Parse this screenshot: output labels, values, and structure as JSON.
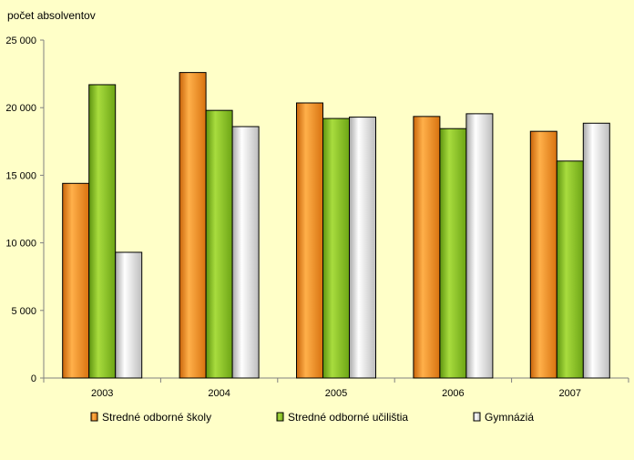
{
  "chart_data": {
    "type": "bar",
    "ylabel": "počet absolventov",
    "categories": [
      "2003",
      "2004",
      "2005",
      "2006",
      "2007"
    ],
    "ylim": [
      0,
      25000
    ],
    "yticks": [
      0,
      5000,
      10000,
      15000,
      20000,
      25000
    ],
    "ytick_labels": [
      "0",
      "5 000",
      "10 000",
      "15 000",
      "20 000",
      "25 000"
    ],
    "grid": false,
    "legend_position": "bottom",
    "series": [
      {
        "name": "Stredné odborné školy",
        "color": "#F28C1E",
        "values": [
          14400,
          22600,
          20350,
          19350,
          18250
        ]
      },
      {
        "name": "Stredné odborné učilištia",
        "color": "#86C11F",
        "values": [
          21700,
          19800,
          19200,
          18450,
          16050
        ]
      },
      {
        "name": "Gymnáziá",
        "color": "#F2F2F2",
        "values": [
          9300,
          18600,
          19300,
          19550,
          18850
        ]
      }
    ]
  }
}
